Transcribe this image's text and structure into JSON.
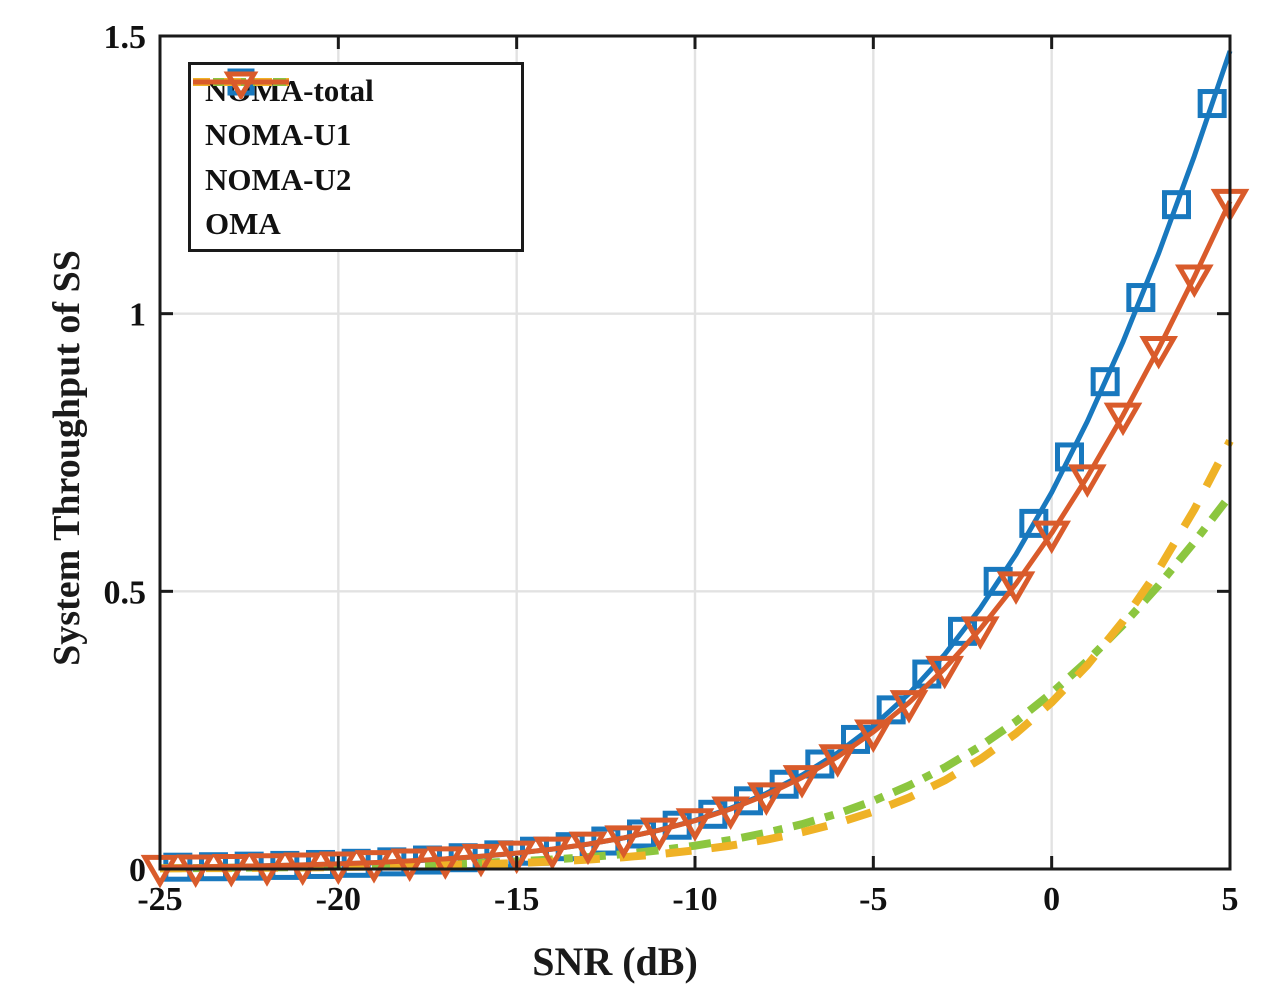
{
  "chart_data": {
    "type": "line",
    "title": "",
    "xlabel": "SNR (dB)",
    "ylabel": "System Throughput of SS",
    "xlim": [
      -25,
      5
    ],
    "ylim": [
      0,
      1.5
    ],
    "xticks": [
      -25,
      -20,
      -15,
      -10,
      -5,
      0,
      5
    ],
    "xtick_labels": [
      "-25",
      "-20",
      "-15",
      "-10",
      "-5",
      "0",
      "5"
    ],
    "yticks": [
      0,
      0.5,
      1,
      1.5
    ],
    "ytick_labels": [
      "0",
      "0.5",
      "1",
      "1.5"
    ],
    "grid": true,
    "grid_color": "#e2e2e2",
    "axis_color": "#1a1a1a",
    "legend_position": "top-left",
    "x": [
      -25,
      -24,
      -23,
      -22,
      -21,
      -20,
      -19,
      -18,
      -17,
      -16,
      -15,
      -14,
      -13,
      -12,
      -11,
      -10,
      -9,
      -8,
      -7,
      -6,
      -5,
      -4,
      -3,
      -2,
      -1,
      0,
      1,
      2,
      3,
      4,
      5
    ],
    "series": [
      {
        "name": "NOMA-total",
        "color": "#1878be",
        "style": "solid",
        "marker": "square",
        "marker_x": [
          -24.5,
          -23.5,
          -22.5,
          -21.5,
          -20.5,
          -19.5,
          -18.5,
          -17.5,
          -16.5,
          -15.5,
          -14.5,
          -13.5,
          -12.5,
          -11.5,
          -10.5,
          -9.5,
          -8.5,
          -7.5,
          -6.5,
          -5.5,
          -4.5,
          -3.5,
          -2.5,
          -1.5,
          -0.5,
          0.5,
          1.5,
          2.5,
          3.5,
          4.5
        ],
        "values": [
          0.0029,
          0.0036,
          0.0046,
          0.0057,
          0.0072,
          0.0091,
          0.0114,
          0.0143,
          0.018,
          0.0226,
          0.0284,
          0.0357,
          0.0447,
          0.056,
          0.0701,
          0.0876,
          0.1094,
          0.1362,
          0.169,
          0.2091,
          0.2575,
          0.3156,
          0.3865,
          0.4694,
          0.5665,
          0.6782,
          0.8058,
          0.9493,
          1.1088,
          1.2838,
          1.473
        ]
      },
      {
        "name": "NOMA-U1",
        "color": "#8cc63f",
        "style": "dashdot",
        "marker": "none",
        "values": [
          0.0014,
          0.0017,
          0.0022,
          0.0028,
          0.0035,
          0.0044,
          0.0055,
          0.0069,
          0.0087,
          0.0109,
          0.0137,
          0.0171,
          0.0215,
          0.0269,
          0.0337,
          0.042,
          0.0524,
          0.0651,
          0.0807,
          0.0997,
          0.1226,
          0.1501,
          0.1827,
          0.2212,
          0.2657,
          0.3169,
          0.3748,
          0.4395,
          0.5108,
          0.5886,
          0.6722
        ]
      },
      {
        "name": "NOMA-U2",
        "color": "#efb226",
        "style": "dashed",
        "marker": "none",
        "values": [
          0.0011,
          0.0014,
          0.0017,
          0.0021,
          0.0027,
          0.0034,
          0.0043,
          0.0054,
          0.0068,
          0.0085,
          0.0107,
          0.0135,
          0.0169,
          0.0213,
          0.0267,
          0.0336,
          0.0421,
          0.0528,
          0.0661,
          0.0826,
          0.1031,
          0.1285,
          0.1596,
          0.1978,
          0.2441,
          0.3001,
          0.367,
          0.4463,
          0.5395,
          0.6474,
          0.7709
        ]
      },
      {
        "name": "OMA",
        "color": "#d95b2b",
        "style": "solid",
        "marker": "triangle-down",
        "marker_x": [
          -25,
          -24,
          -23,
          -22,
          -21,
          -20,
          -19,
          -18,
          -17,
          -16,
          -15,
          -14,
          -13,
          -12,
          -11,
          -10,
          -9,
          -8,
          -7,
          -6,
          -5,
          -4,
          -3,
          -2,
          -1,
          0,
          1,
          2,
          3,
          4,
          5
        ],
        "values": [
          0.0029,
          0.0037,
          0.0046,
          0.0058,
          0.0073,
          0.0091,
          0.0115,
          0.0145,
          0.0182,
          0.0228,
          0.0286,
          0.0358,
          0.0448,
          0.056,
          0.0699,
          0.0869,
          0.108,
          0.1335,
          0.1646,
          0.2021,
          0.2468,
          0.2995,
          0.3612,
          0.4323,
          0.5135,
          0.6048,
          0.7061,
          0.8172,
          0.9373,
          1.066,
          1.2023
        ]
      }
    ]
  }
}
